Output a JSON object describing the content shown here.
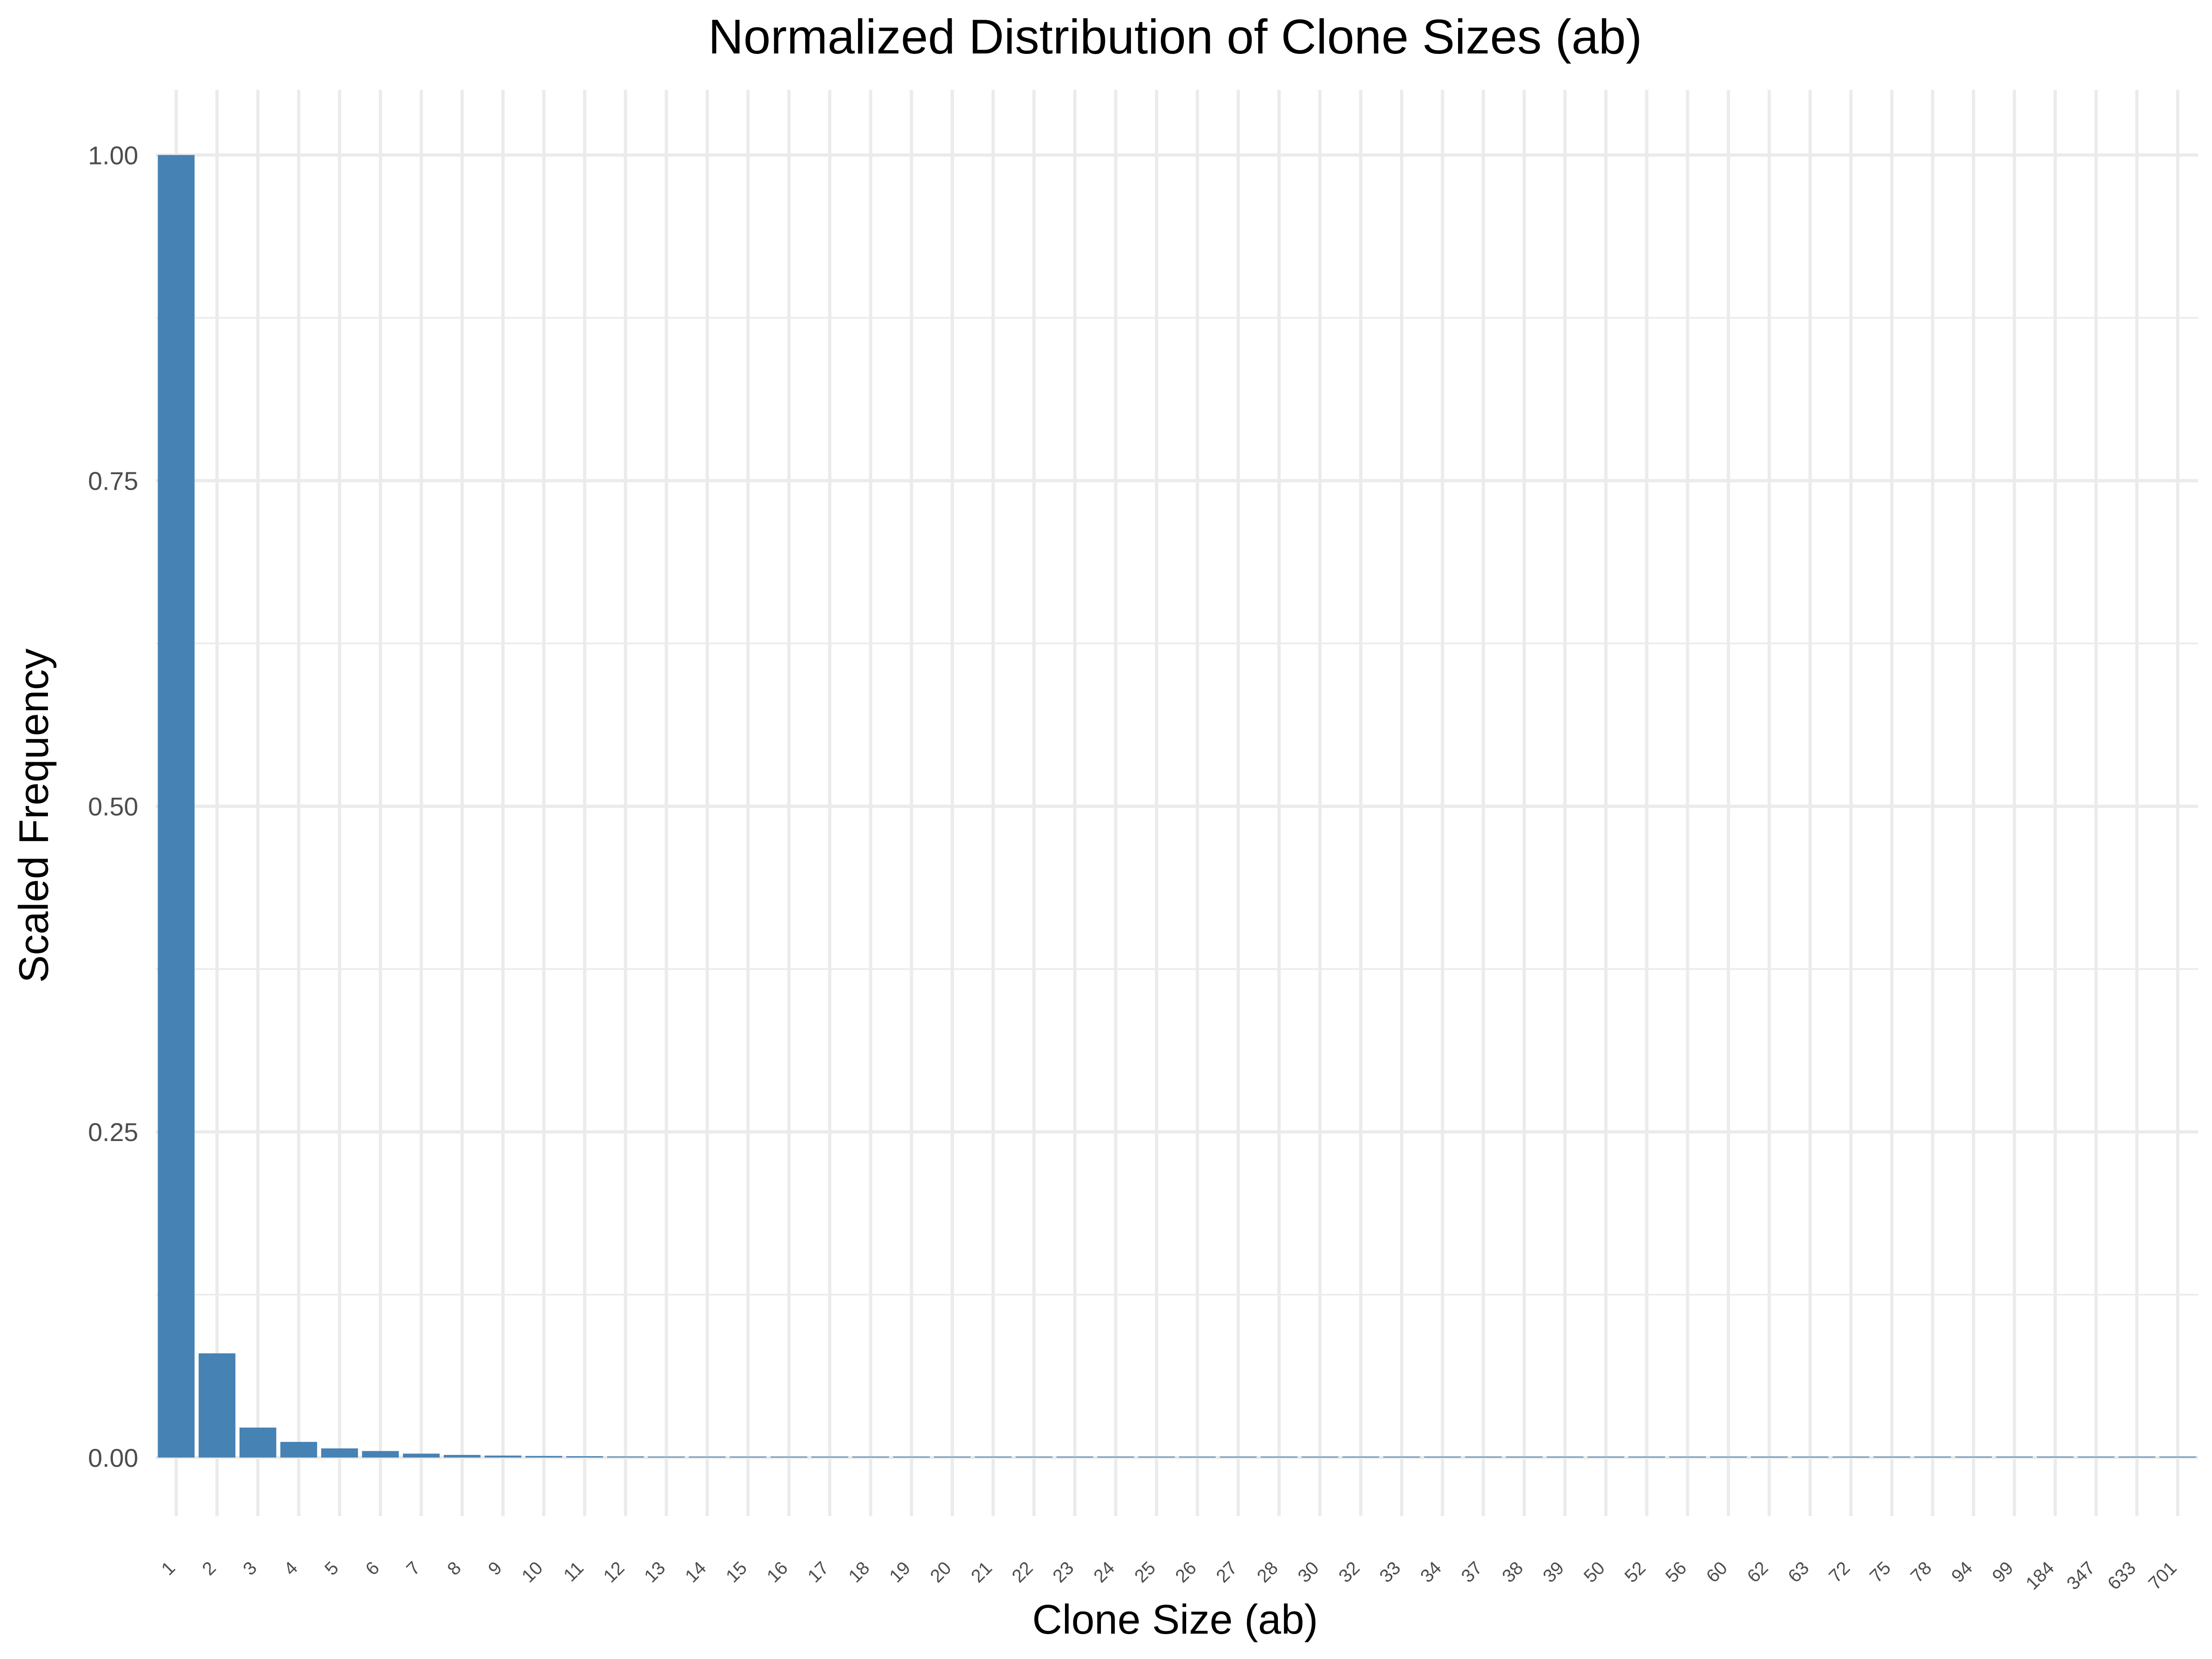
{
  "chart_data": {
    "type": "bar",
    "title": "Normalized Distribution of Clone Sizes (ab)",
    "xlabel": "Clone Size (ab)",
    "ylabel": "Scaled Frequency",
    "ylim": [
      -0.045,
      1.05
    ],
    "yticks": [
      "0.00",
      "0.25",
      "0.50",
      "0.75",
      "1.00"
    ],
    "grid": true,
    "legend": "none",
    "bar_color": "#4682b4",
    "categories": [
      "1",
      "2",
      "3",
      "4",
      "5",
      "6",
      "7",
      "8",
      "9",
      "10",
      "11",
      "12",
      "13",
      "14",
      "15",
      "16",
      "17",
      "18",
      "19",
      "20",
      "21",
      "22",
      "23",
      "24",
      "25",
      "26",
      "27",
      "28",
      "30",
      "32",
      "33",
      "34",
      "37",
      "38",
      "39",
      "50",
      "52",
      "56",
      "60",
      "62",
      "63",
      "72",
      "75",
      "78",
      "94",
      "99",
      "184",
      "347",
      "633",
      "701"
    ],
    "values": [
      1.0,
      0.08,
      0.023,
      0.012,
      0.007,
      0.005,
      0.003,
      0.002,
      0.0015,
      0.0012,
      0.001,
      0.0008,
      0.0006,
      0.0005,
      0.0004,
      0.0004,
      0.0003,
      0.0003,
      0.0003,
      0.0002,
      0.0002,
      0.0002,
      0.0002,
      0.0002,
      0.0001,
      0.0001,
      0.0001,
      0.0001,
      0.0001,
      0.0001,
      0.0001,
      0.0001,
      0.0001,
      0.0001,
      0.0001,
      0.0001,
      0.0001,
      0.0001,
      0.0001,
      0.0001,
      0.0001,
      0.0001,
      0.0001,
      0.0001,
      0.0001,
      0.0001,
      0.0001,
      0.0001,
      0.0001,
      0.0001
    ]
  }
}
